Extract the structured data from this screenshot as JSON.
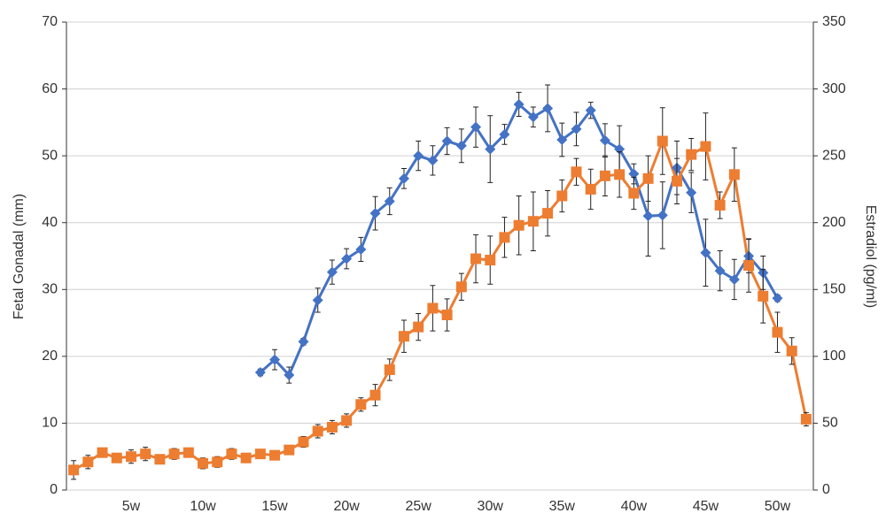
{
  "chart_data": {
    "type": "line",
    "ylabel": "Fetal Gonadal (mm)",
    "y2label": "Estradiol (pg/ml)",
    "categories": [
      null,
      null,
      null,
      null,
      "5w",
      null,
      null,
      null,
      null,
      "10w",
      null,
      null,
      null,
      null,
      "15w",
      null,
      null,
      null,
      null,
      "20w",
      null,
      null,
      null,
      null,
      "25w",
      null,
      null,
      null,
      null,
      "30w",
      null,
      null,
      null,
      null,
      "35w",
      null,
      null,
      null,
      null,
      "40w",
      null,
      null,
      null,
      null,
      "45w",
      null,
      null,
      null,
      null,
      "50w",
      null,
      null
    ],
    "ylim": [
      0,
      70
    ],
    "yticks": [
      0,
      10,
      20,
      30,
      40,
      50,
      60,
      70
    ],
    "y2lim": [
      0,
      350
    ],
    "y2ticks": [
      0,
      50,
      100,
      150,
      200,
      250,
      300,
      350
    ],
    "grid": true,
    "series": [
      {
        "color": "#4472c4",
        "marker": "diamond",
        "axis": "y",
        "values": [
          null,
          null,
          null,
          null,
          null,
          null,
          null,
          null,
          null,
          null,
          null,
          null,
          null,
          17.6,
          19.5,
          17.2,
          22.2,
          28.4,
          32.6,
          34.6,
          36.0,
          41.4,
          43.2,
          46.6,
          50.0,
          49.3,
          52.2,
          51.5,
          54.3,
          51.0,
          53.2,
          57.7,
          55.8,
          57.1,
          52.4,
          54.0,
          56.8,
          52.3,
          51.0,
          47.3,
          41.0,
          41.1,
          48.2,
          44.5,
          35.5,
          32.8,
          31.5,
          35.0,
          32.5,
          28.7,
          null,
          null
        ],
        "errors": [
          null,
          null,
          null,
          null,
          null,
          null,
          null,
          null,
          null,
          null,
          null,
          null,
          null,
          0.5,
          1.5,
          1.2,
          0.5,
          1.8,
          1.8,
          1.5,
          1.8,
          2.5,
          2,
          1.5,
          2.2,
          2.2,
          2,
          2.5,
          3,
          5,
          1.5,
          1.8,
          1.5,
          3.5,
          2.5,
          2.5,
          1.2,
          2.5,
          3.5,
          1.5,
          6,
          5,
          4,
          3,
          5,
          3,
          3,
          2.5,
          2.5,
          0.5,
          null,
          null
        ]
      },
      {
        "color": "#ed7d31",
        "marker": "square",
        "axis": "y2",
        "values": [
          15,
          21,
          28,
          24,
          25,
          27,
          23,
          27,
          28,
          20,
          21,
          27,
          24,
          27,
          26,
          30,
          36,
          44,
          47,
          52,
          64,
          71,
          90,
          115,
          122,
          136,
          131,
          152,
          173,
          172,
          189,
          198,
          201,
          207,
          220,
          238,
          225,
          235,
          236,
          222,
          233,
          261,
          231,
          251,
          257,
          213,
          236,
          168,
          145,
          118,
          104,
          53
        ],
        "errors": [
          7,
          5,
          3,
          3,
          5,
          5,
          3,
          4,
          3,
          4,
          4,
          4,
          3,
          3,
          3,
          3,
          4,
          5,
          5,
          5,
          5,
          8,
          8,
          12,
          10,
          17,
          12,
          10,
          18,
          18,
          15,
          22,
          22,
          17,
          12,
          10,
          15,
          15,
          17,
          12,
          17,
          25,
          17,
          12,
          25,
          10,
          20,
          20,
          20,
          15,
          10,
          5
        ]
      }
    ]
  }
}
